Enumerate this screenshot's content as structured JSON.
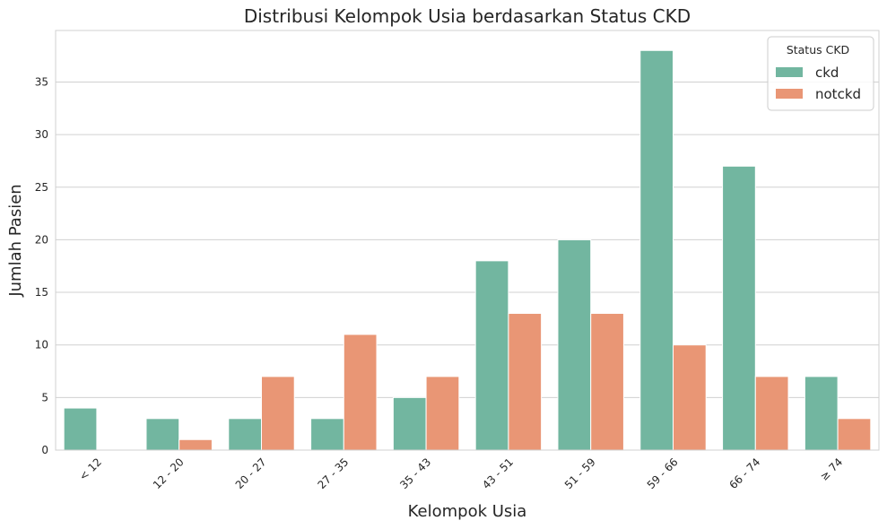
{
  "chart_data": {
    "type": "bar",
    "title": "Distribusi Kelompok Usia berdasarkan Status CKD",
    "xlabel": "Kelompok Usia",
    "ylabel": "Jumlah Pasien",
    "categories": [
      "< 12",
      "12 - 20",
      "20 - 27",
      "27 - 35",
      "35 - 43",
      "43 - 51",
      "51 - 59",
      "59 - 66",
      "66 - 74",
      "≥ 74"
    ],
    "series": [
      {
        "name": "ckd",
        "color": "#72b6a0",
        "values": [
          4,
          3,
          3,
          3,
          5,
          18,
          20,
          38,
          27,
          7
        ]
      },
      {
        "name": "notckd",
        "color": "#e99675",
        "values": [
          0,
          1,
          7,
          11,
          7,
          13,
          13,
          10,
          7,
          3
        ]
      }
    ],
    "ylim": [
      0,
      39.9
    ],
    "yticks": [
      0,
      5,
      10,
      15,
      20,
      25,
      30,
      35
    ],
    "grid": "horizontal",
    "legend": {
      "title": "Status CKD",
      "placement": "top-right"
    }
  }
}
